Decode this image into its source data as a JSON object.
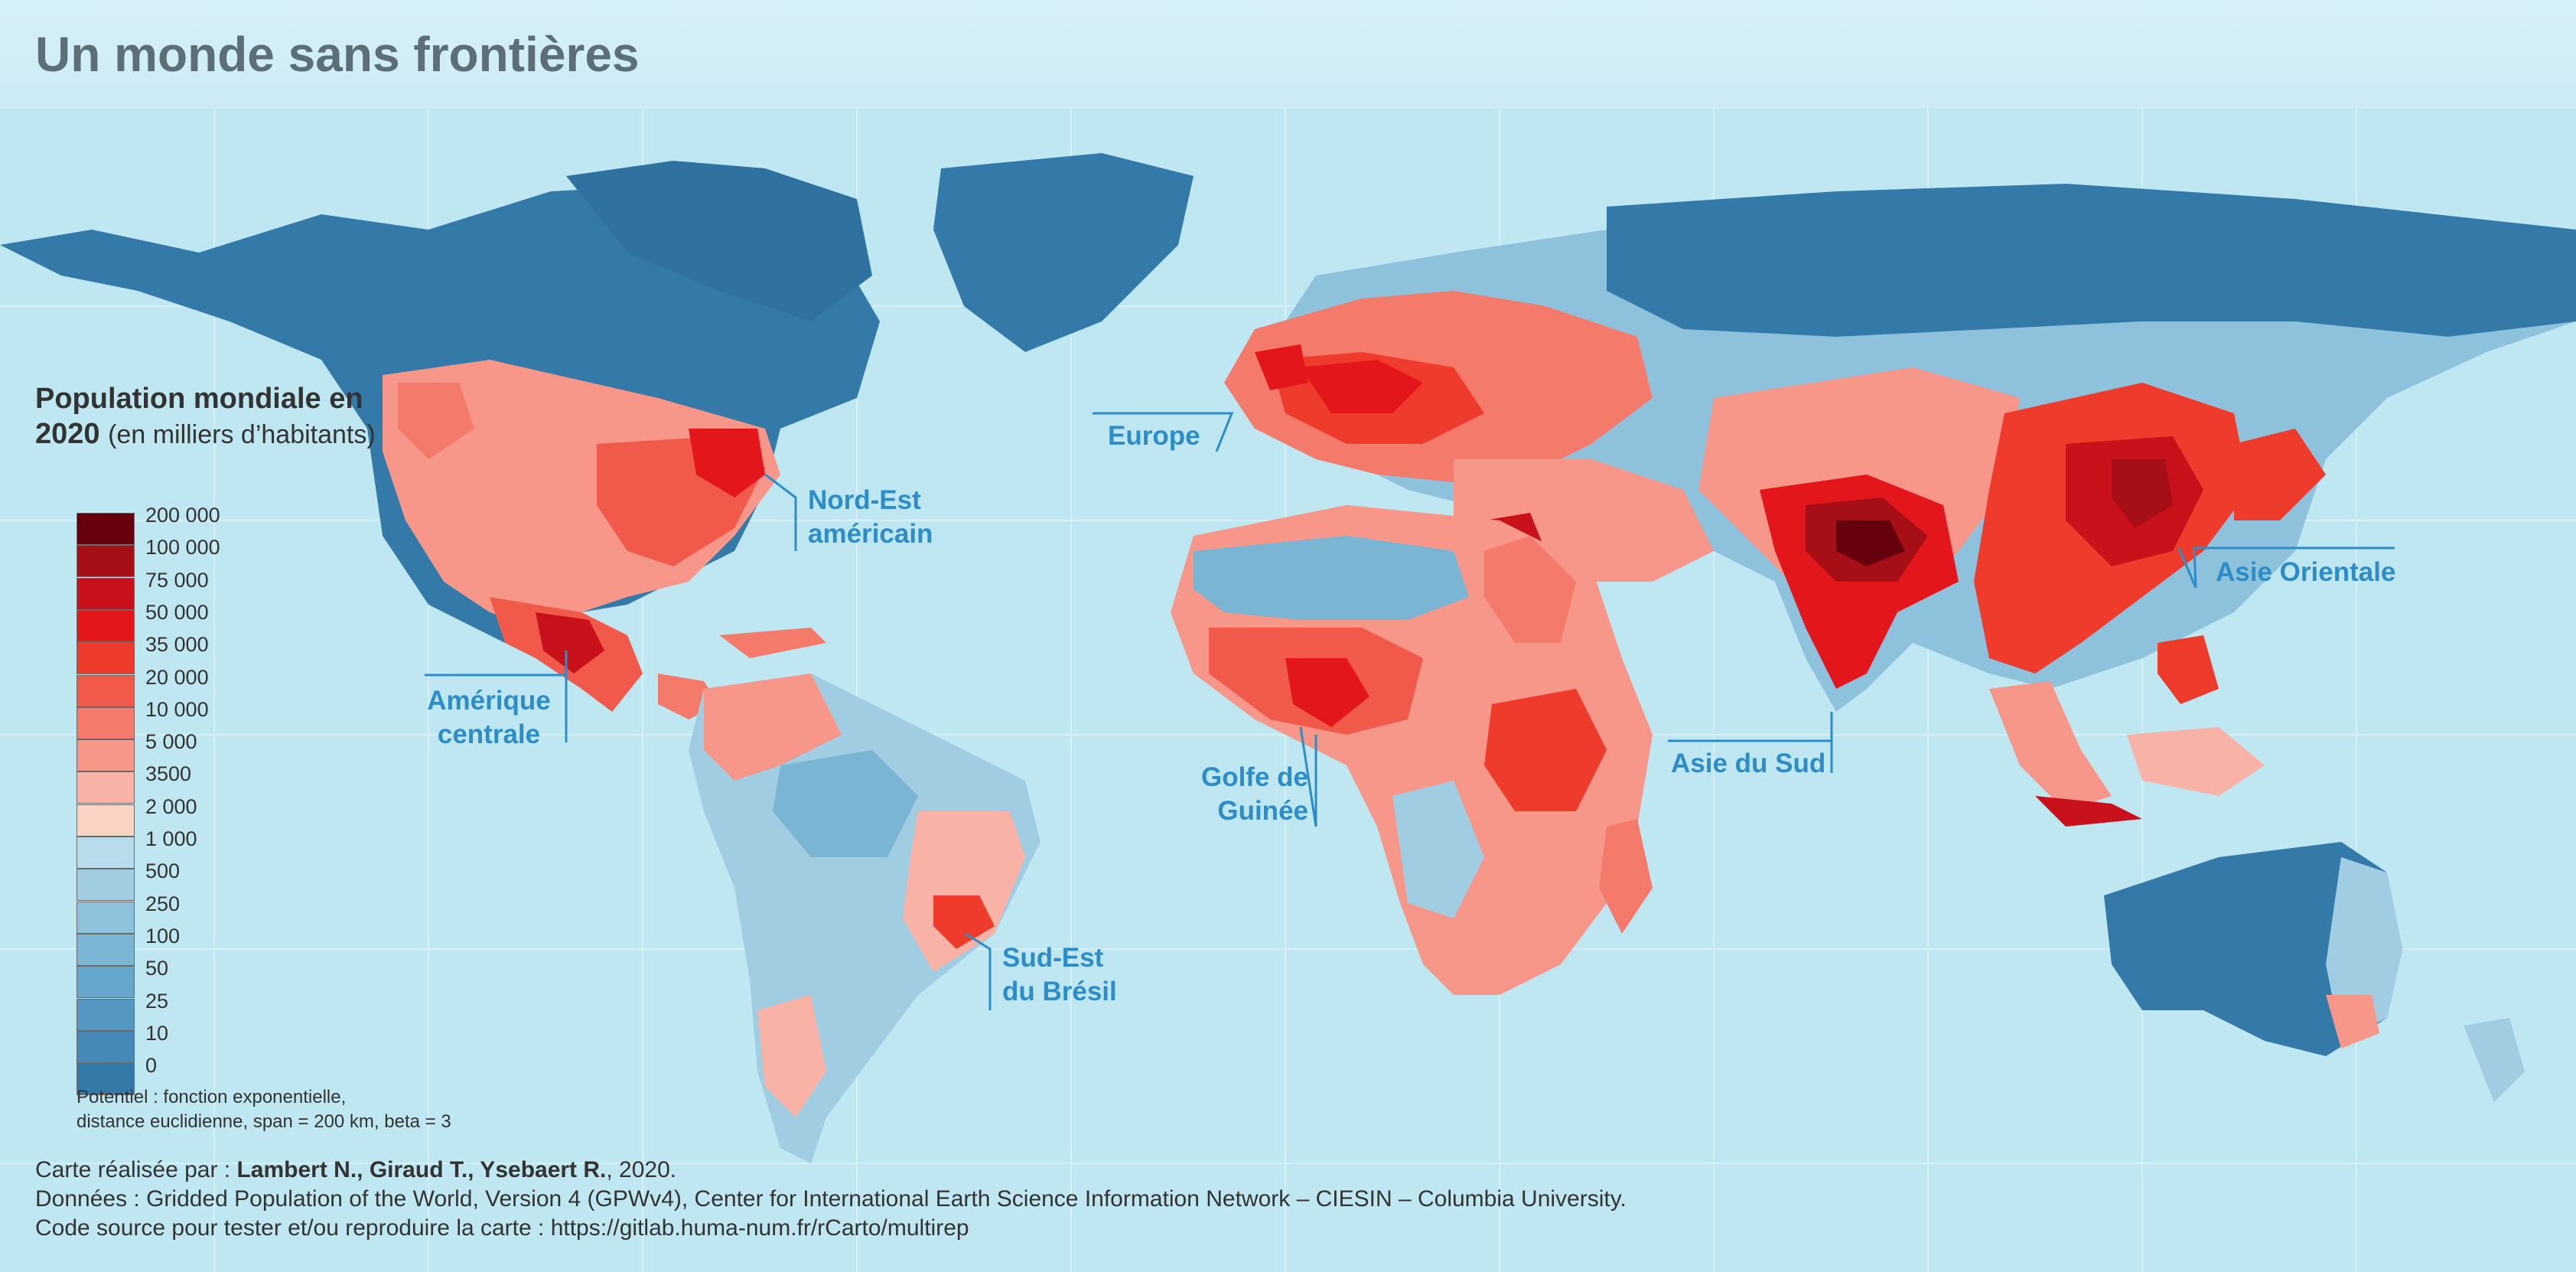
{
  "title": "Un monde sans frontières",
  "legend": {
    "title_bold": "Population mondiale en 2020",
    "title_rest": "(en milliers d’habitants)",
    "classes": [
      {
        "label": "200 000",
        "color": "#67000d"
      },
      {
        "label": "100 000",
        "color": "#a50f15"
      },
      {
        "label": "75 000",
        "color": "#c8111a"
      },
      {
        "label": "50 000",
        "color": "#e3161c"
      },
      {
        "label": "35 000",
        "color": "#ef3b2c"
      },
      {
        "label": "20 000",
        "color": "#f15a4a"
      },
      {
        "label": "10 000",
        "color": "#f47a6b"
      },
      {
        "label": "5 000",
        "color": "#f7978a"
      },
      {
        "label": "3500",
        "color": "#f9b3a6"
      },
      {
        "label": "2 000",
        "color": "#fcd2c4"
      },
      {
        "label": "1 000",
        "color": "#b8dcea"
      },
      {
        "label": "500",
        "color": "#a0cde2"
      },
      {
        "label": "250",
        "color": "#8ec2dc"
      },
      {
        "label": "100",
        "color": "#7ab5d4"
      },
      {
        "label": "50",
        "color": "#65a6cb"
      },
      {
        "label": "25",
        "color": "#5498c2"
      },
      {
        "label": "10",
        "color": "#4489b8"
      },
      {
        "label": "0",
        "color": "#347aa9"
      }
    ],
    "note_line1": "Potentiel : fonction exponentielle,",
    "note_line2": "distance euclidienne, span = 200 km, beta = 3"
  },
  "callouts": [
    {
      "line1": "Nord-Est",
      "line2": "américain"
    },
    {
      "line1": "Europe",
      "line2": ""
    },
    {
      "line1": "Asie Orientale",
      "line2": ""
    },
    {
      "line1": "Amérique",
      "line2": "centrale"
    },
    {
      "line1": "Golfe de",
      "line2": "Guinée"
    },
    {
      "line1": "Asie du Sud",
      "line2": ""
    },
    {
      "line1": "Sud-Est",
      "line2": "du Brésil"
    }
  ],
  "credits": {
    "line1_prefix": "Carte réalisée par :",
    "line1_authors": "Lambert N., Giraud T., Ysebaert R.",
    "line1_suffix": ", 2020.",
    "line2": "Données : Gridded Population of the World, Version 4 (GPWv4), Center for International Earth Science Information Network – CIESIN – Columbia University.",
    "line3": "Code source pour tester et/ou reproduire la carte : https://gitlab.huma-num.fr/rCarto/multirep"
  },
  "colors": {
    "ocean": "#bfe7f2",
    "grid": "#d7f1f8",
    "callout": "#2c8dc8",
    "land_low": "#347aa9"
  }
}
